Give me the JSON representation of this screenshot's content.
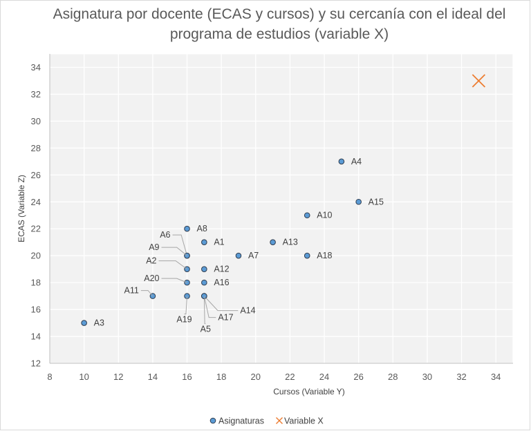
{
  "chart_data": {
    "type": "scatter",
    "title": "Asignatura por docente (ECAS y cursos) y su cercanía con el ideal del programa de estudios (variable X)",
    "xlabel": "Cursos (Variable Y)",
    "ylabel": "ECAS (Variable Z)",
    "xlim": [
      8,
      35
    ],
    "ylim": [
      12,
      35
    ],
    "xticks": [
      8,
      10,
      12,
      14,
      16,
      18,
      20,
      22,
      24,
      26,
      28,
      30,
      32,
      34
    ],
    "yticks": [
      12,
      14,
      16,
      18,
      20,
      22,
      24,
      26,
      28,
      30,
      32,
      34
    ],
    "grid": true,
    "legend_position": "bottom",
    "series": [
      {
        "name": "Asignaturas",
        "marker": "circle",
        "color": "#5b9bd5",
        "points": [
          {
            "label": "A1",
            "x": 17,
            "y": 21
          },
          {
            "label": "A2",
            "x": 16,
            "y": 19
          },
          {
            "label": "A3",
            "x": 10,
            "y": 15
          },
          {
            "label": "A4",
            "x": 25,
            "y": 27
          },
          {
            "label": "A5",
            "x": 17,
            "y": 17
          },
          {
            "label": "A6",
            "x": 16,
            "y": 20
          },
          {
            "label": "A7",
            "x": 19,
            "y": 20
          },
          {
            "label": "A8",
            "x": 16,
            "y": 22
          },
          {
            "label": "A9",
            "x": 16,
            "y": 20
          },
          {
            "label": "A10",
            "x": 23,
            "y": 23
          },
          {
            "label": "A11",
            "x": 14,
            "y": 17
          },
          {
            "label": "A12",
            "x": 17,
            "y": 19
          },
          {
            "label": "A13",
            "x": 21,
            "y": 21
          },
          {
            "label": "A14",
            "x": 17,
            "y": 17
          },
          {
            "label": "A15",
            "x": 26,
            "y": 24
          },
          {
            "label": "A16",
            "x": 17,
            "y": 18
          },
          {
            "label": "A17",
            "x": 17,
            "y": 17
          },
          {
            "label": "A18",
            "x": 23,
            "y": 20
          },
          {
            "label": "A19",
            "x": 16,
            "y": 17
          },
          {
            "label": "A20",
            "x": 16,
            "y": 18
          }
        ]
      },
      {
        "name": "Variable X",
        "marker": "x",
        "color": "#ed7d31",
        "points": [
          {
            "label": "",
            "x": 33,
            "y": 33
          }
        ]
      }
    ]
  }
}
